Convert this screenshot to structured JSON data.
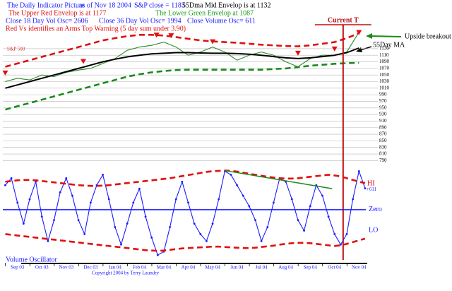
{
  "header": {
    "title": "The Daily Indicator Picture",
    "date": "as of Nov 18 2004",
    "close": "S&P close = 1183",
    "dma": "55Dma",
    "mid": "Mid Envelop is at 1132",
    "upper": "The Upper Red Envelop is at 1177",
    "lower": "The Lower Green Envelop at 1087",
    "osc18": "Close 18 Day Vol Osc= 2606",
    "osc36": "Close 36 Day Vol Osc= 1994",
    "oscv": "Close Volume Osc= 611",
    "arms": "Red Vs identifies an Arms Top Warning (5 day sum under 3.90)",
    "copyright": "Copyright 2004 by Terry Laundry"
  },
  "chart_data": [
    {
      "type": "line",
      "x": [
        -0.5,
        0,
        0.5,
        1,
        1.5,
        2,
        2.5,
        3,
        3.5,
        4,
        4.5,
        5,
        5.5,
        6,
        6.5,
        7,
        7.5,
        8,
        8.5,
        9,
        9.5,
        10,
        10.5,
        11,
        11.5,
        12,
        12.5,
        13,
        13.5,
        14
      ],
      "xlim": [
        -0.6,
        14.6
      ],
      "ylim": [
        780,
        1192
      ],
      "yticks": [
        1130,
        1110,
        1090,
        1070,
        1050,
        1030,
        1010,
        990,
        970,
        950,
        930,
        910,
        890,
        870,
        850,
        830,
        810,
        790
      ],
      "grid": true,
      "series": [
        {
          "name": "S&P 500",
          "color": "#2a8a2a",
          "values": [
            1030,
            1040,
            1035,
            1050,
            1045,
            1058,
            1065,
            1070,
            1085,
            1100,
            1125,
            1135,
            1140,
            1150,
            1135,
            1110,
            1120,
            1135,
            1120,
            1095,
            1110,
            1120,
            1110,
            1090,
            1075,
            1100,
            1110,
            1110,
            1120,
            1180
          ]
        },
        {
          "color": "#e01010",
          "dash": true,
          "values": [
            1075,
            1085,
            1095,
            1105,
            1115,
            1125,
            1135,
            1145,
            1155,
            1162,
            1168,
            1172,
            1172,
            1170,
            1165,
            1160,
            1155,
            1152,
            1150,
            1148,
            1145,
            1142,
            1140,
            1138,
            1137,
            1140,
            1145,
            1150,
            1162,
            1177
          ]
        },
        {
          "color": "#1a8a1a",
          "dash": true,
          "values": [
            945,
            955,
            965,
            975,
            985,
            995,
            1005,
            1015,
            1025,
            1035,
            1045,
            1052,
            1058,
            1062,
            1065,
            1066,
            1066,
            1066,
            1066,
            1066,
            1066,
            1066,
            1068,
            1070,
            1074,
            1078,
            1081,
            1084,
            1086,
            1087
          ]
        },
        {
          "name": "55Day MA",
          "color": "#000000",
          "values": [
            1010,
            1020,
            1030,
            1040,
            1050,
            1060,
            1070,
            1080,
            1090,
            1098,
            1105,
            1110,
            1114,
            1116,
            1118,
            1118,
            1117,
            1116,
            1116,
            1115,
            1113,
            1110,
            1106,
            1102,
            1100,
            1102,
            1106,
            1110,
            1118,
            1132
          ]
        }
      ],
      "warnings": {
        "color": "#e01010",
        "x": [
          -0.5,
          2.7,
          5.7,
          6.3,
          8.0,
          11.5,
          13.0,
          14.0
        ],
        "values": [
          1055,
          1090,
          1170,
          1168,
          1150,
          1115,
          1128,
          1178
        ]
      },
      "current": {
        "label": "Current T",
        "x": 13.35,
        "color": "#c01010"
      },
      "callout": "Upside breakout"
    },
    {
      "type": "line",
      "x": [
        -0.5,
        -0.25,
        0,
        0.25,
        0.5,
        0.75,
        1,
        1.25,
        1.5,
        1.75,
        2,
        2.25,
        2.5,
        2.75,
        3,
        3.25,
        3.5,
        3.75,
        4,
        4.25,
        4.5,
        4.75,
        5,
        5.25,
        5.5,
        5.75,
        6,
        6.25,
        6.5,
        6.75,
        7,
        7.25,
        7.5,
        7.75,
        8,
        8.25,
        8.5,
        8.75,
        9,
        9.25,
        9.5,
        9.75,
        10,
        10.25,
        10.5,
        10.75,
        11,
        11.25,
        11.5,
        11.75,
        12,
        12.25,
        12.5,
        12.75,
        13,
        13.25,
        13.5,
        13.75,
        14,
        14.25
      ],
      "xlim": [
        -0.6,
        14.6
      ],
      "ylim": [
        -1500,
        1250
      ],
      "xticks": [
        {
          "value": 0,
          "label": "Sep 03"
        },
        {
          "value": 1,
          "label": "Oct 03"
        },
        {
          "value": 2,
          "label": "Nov 03"
        },
        {
          "value": 3,
          "label": "Dec 03"
        },
        {
          "value": 4,
          "label": "Jan 04"
        },
        {
          "value": 5,
          "label": "Feb 04"
        },
        {
          "value": 6,
          "label": "Mar 04"
        },
        {
          "value": 7,
          "label": "Apr 04"
        },
        {
          "value": 8,
          "label": "May 04"
        },
        {
          "value": 9,
          "label": "Jun 04"
        },
        {
          "value": 10,
          "label": "Jul 04"
        },
        {
          "value": 11,
          "label": "Aug 04"
        },
        {
          "value": 12,
          "label": "Sep 04"
        },
        {
          "value": 13,
          "label": "Oct 04"
        },
        {
          "value": 14,
          "label": "Nov 04"
        }
      ],
      "series": [
        {
          "name": "Volume Oscillator",
          "color": "#1a1aff",
          "values": [
            700,
            900,
            200,
            -400,
            300,
            800,
            -200,
            -900,
            -300,
            500,
            900,
            400,
            -300,
            -700,
            200,
            700,
            1000,
            300,
            -500,
            -1000,
            -400,
            200,
            600,
            -200,
            -800,
            -1300,
            -1200,
            -500,
            300,
            800,
            200,
            -400,
            -700,
            -900,
            -400,
            300,
            1100,
            1000,
            700,
            400,
            100,
            -300,
            -900,
            -500,
            200,
            900,
            800,
            300,
            -300,
            -600,
            100,
            700,
            400,
            -200,
            -700,
            -1000,
            -700,
            300,
            1100,
            611
          ]
        },
        {
          "name": "HI",
          "color": "#e01010",
          "dash": true,
          "values": [
            800,
            820,
            840,
            850,
            850,
            840,
            820,
            800,
            780,
            760,
            740,
            720,
            700,
            690,
            680,
            680,
            690,
            700,
            720,
            740,
            760,
            780,
            800,
            820,
            840,
            860,
            880,
            900,
            930,
            960,
            990,
            1020,
            1050,
            1080,
            1100,
            1110,
            1120,
            1110,
            1090,
            1060,
            1030,
            1000,
            970,
            940,
            920,
            900,
            890,
            890,
            900,
            920,
            940,
            960,
            980,
            1000,
            980,
            950,
            900,
            850,
            800,
            760
          ]
        },
        {
          "name": "LO",
          "color": "#e01010",
          "dash": true,
          "values": [
            -700,
            -720,
            -740,
            -760,
            -780,
            -800,
            -820,
            -840,
            -860,
            -880,
            -900,
            -920,
            -940,
            -960,
            -980,
            -1000,
            -1020,
            -1040,
            -1060,
            -1080,
            -1100,
            -1120,
            -1140,
            -1160,
            -1170,
            -1180,
            -1170,
            -1150,
            -1130,
            -1110,
            -1100,
            -1090,
            -1080,
            -1070,
            -1060,
            -1060,
            -1070,
            -1080,
            -1090,
            -1100,
            -1100,
            -1090,
            -1070,
            -1050,
            -1030,
            -1000,
            -980,
            -960,
            -950,
            -950,
            -960,
            -980,
            -1000,
            -1020,
            -1040,
            -1020,
            -980,
            -930,
            -880,
            -830
          ]
        }
      ],
      "zero_line": {
        "value": 0,
        "label": "Zero",
        "color": "#1a1aff"
      },
      "trendline": {
        "color": "#1a8a1a",
        "x": [
          8.5,
          12.9
        ],
        "values": [
          1120,
          600
        ]
      },
      "annotations": [
        {
          "x": 14.25,
          "value": 611,
          "label": "+611"
        }
      ]
    }
  ]
}
